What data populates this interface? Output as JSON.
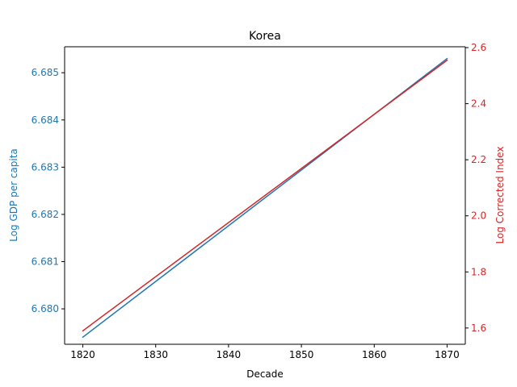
{
  "chart_data": {
    "type": "line",
    "title": "Korea",
    "xlabel": "Decade",
    "ylabel_left": "Log GDP per capita",
    "ylabel_right": "Log Corrected Index",
    "x": [
      1820,
      1870
    ],
    "xlim": [
      1817.5,
      1872.5
    ],
    "xticks": [
      1820,
      1830,
      1840,
      1850,
      1860,
      1870
    ],
    "left_axis": {
      "ylim": [
        6.67925,
        6.68555
      ],
      "ticks": [
        6.68,
        6.681,
        6.682,
        6.683,
        6.684,
        6.685
      ],
      "tick_labels": [
        "6.680",
        "6.681",
        "6.682",
        "6.683",
        "6.684",
        "6.685"
      ],
      "color": "#1f77b4"
    },
    "right_axis": {
      "ylim": [
        1.542,
        2.603
      ],
      "ticks": [
        1.6,
        1.8,
        2.0,
        2.2,
        2.4,
        2.6
      ],
      "tick_labels": [
        "1.6",
        "1.8",
        "2.0",
        "2.2",
        "2.4",
        "2.6"
      ],
      "color": "#d62728"
    },
    "series": [
      {
        "axis": "left",
        "color": "#1f77b4",
        "values": [
          6.6794,
          6.6853
        ]
      },
      {
        "axis": "right",
        "color": "#d62728",
        "values": [
          1.59,
          2.555
        ]
      }
    ],
    "grid": false
  }
}
